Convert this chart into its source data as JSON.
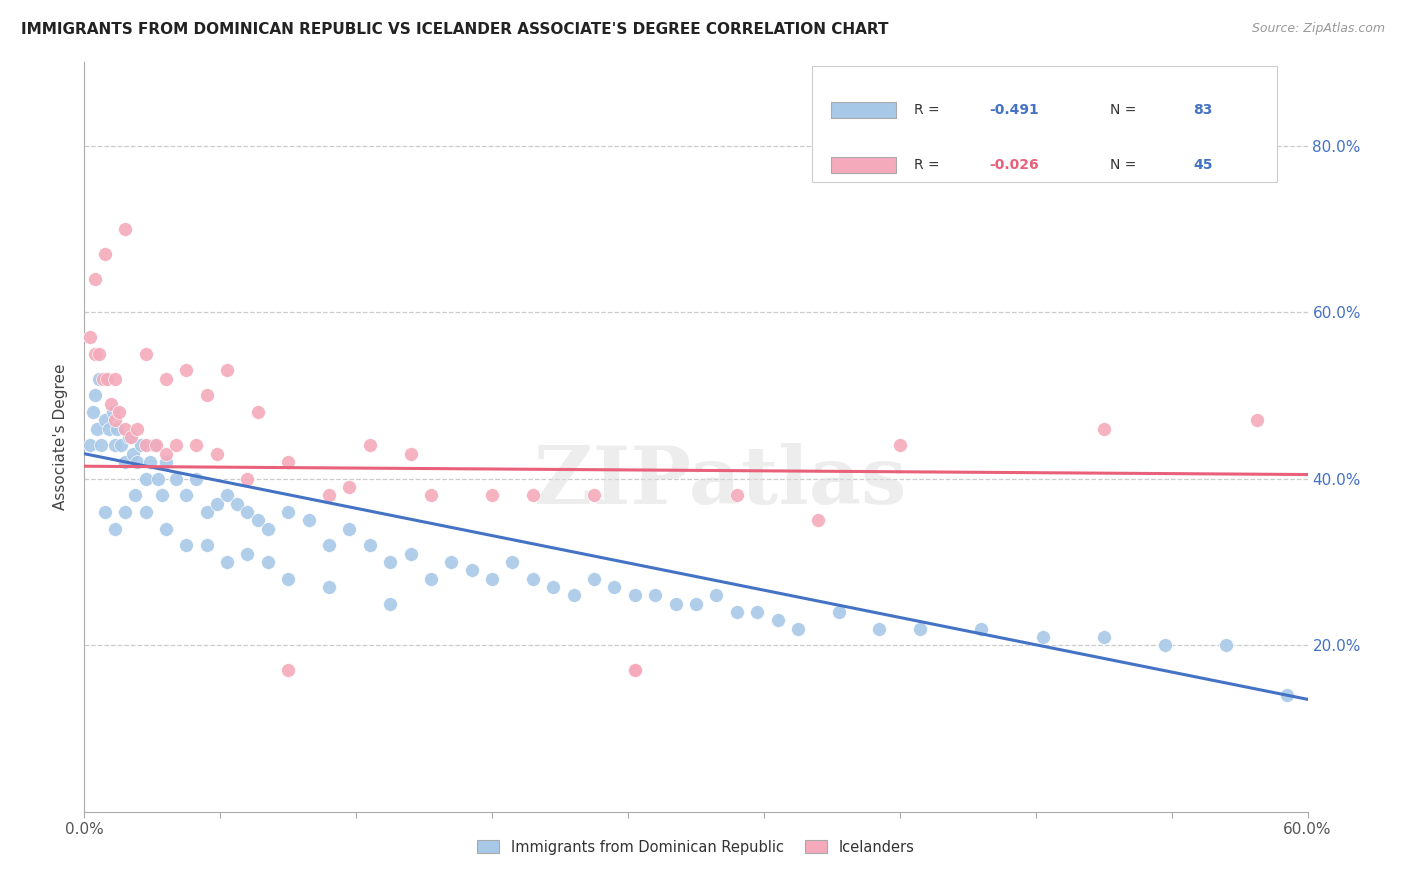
{
  "title": "IMMIGRANTS FROM DOMINICAN REPUBLIC VS ICELANDER ASSOCIATE'S DEGREE CORRELATION CHART",
  "source": "Source: ZipAtlas.com",
  "ylabel": "Associate's Degree",
  "legend_label1": "Immigrants from Dominican Republic",
  "legend_label2": "Icelanders",
  "blue_color": "#A8C8E8",
  "pink_color": "#F4AABB",
  "blue_line_color": "#4472C4",
  "pink_line_color": "#E8607A",
  "blue_r_color": "#4472C4",
  "pink_r_color": "#E8607A",
  "n_color": "#4472C4",
  "ytick_color": "#4472C4",
  "watermark": "ZIPatlas",
  "blue_dots_x": [
    0.3,
    0.4,
    0.5,
    0.6,
    0.7,
    0.8,
    1.0,
    1.2,
    1.4,
    1.5,
    1.6,
    1.8,
    2.0,
    2.2,
    2.4,
    2.6,
    2.8,
    3.0,
    3.2,
    3.4,
    3.6,
    3.8,
    4.0,
    4.5,
    5.0,
    5.5,
    6.0,
    6.5,
    7.0,
    7.5,
    8.0,
    8.5,
    9.0,
    10.0,
    11.0,
    12.0,
    13.0,
    14.0,
    15.0,
    16.0,
    17.0,
    18.0,
    19.0,
    20.0,
    21.0,
    22.0,
    23.0,
    24.0,
    25.0,
    26.0,
    27.0,
    28.0,
    29.0,
    30.0,
    31.0,
    32.0,
    33.0,
    34.0,
    35.0,
    37.0,
    39.0,
    41.0,
    44.0,
    47.0,
    50.0,
    53.0,
    56.0,
    59.0,
    1.0,
    1.5,
    2.0,
    2.5,
    3.0,
    4.0,
    5.0,
    6.0,
    7.0,
    8.0,
    9.0,
    10.0,
    12.0,
    15.0
  ],
  "blue_dots_y": [
    44.0,
    48.0,
    50.0,
    46.0,
    52.0,
    44.0,
    47.0,
    46.0,
    48.0,
    44.0,
    46.0,
    44.0,
    42.0,
    45.0,
    43.0,
    42.0,
    44.0,
    40.0,
    42.0,
    44.0,
    40.0,
    38.0,
    42.0,
    40.0,
    38.0,
    40.0,
    36.0,
    37.0,
    38.0,
    37.0,
    36.0,
    35.0,
    34.0,
    36.0,
    35.0,
    32.0,
    34.0,
    32.0,
    30.0,
    31.0,
    28.0,
    30.0,
    29.0,
    28.0,
    30.0,
    28.0,
    27.0,
    26.0,
    28.0,
    27.0,
    26.0,
    26.0,
    25.0,
    25.0,
    26.0,
    24.0,
    24.0,
    23.0,
    22.0,
    24.0,
    22.0,
    22.0,
    22.0,
    21.0,
    21.0,
    20.0,
    20.0,
    14.0,
    36.0,
    34.0,
    36.0,
    38.0,
    36.0,
    34.0,
    32.0,
    32.0,
    30.0,
    31.0,
    30.0,
    28.0,
    27.0,
    25.0
  ],
  "pink_dots_x": [
    0.3,
    0.5,
    0.7,
    0.9,
    1.1,
    1.3,
    1.5,
    1.7,
    2.0,
    2.3,
    2.6,
    3.0,
    3.5,
    4.0,
    4.5,
    5.5,
    6.5,
    8.0,
    10.0,
    13.0,
    16.0,
    20.0,
    25.0,
    27.0,
    32.0,
    36.0,
    40.0,
    50.0,
    57.5,
    0.5,
    1.0,
    1.5,
    2.0,
    3.0,
    4.0,
    5.0,
    6.0,
    7.0,
    8.5,
    10.0,
    12.0,
    14.0,
    17.0,
    22.0,
    27.0
  ],
  "pink_dots_y": [
    57.0,
    55.0,
    55.0,
    52.0,
    52.0,
    49.0,
    47.0,
    48.0,
    46.0,
    45.0,
    46.0,
    44.0,
    44.0,
    43.0,
    44.0,
    44.0,
    43.0,
    40.0,
    42.0,
    39.0,
    43.0,
    38.0,
    38.0,
    17.0,
    38.0,
    35.0,
    44.0,
    46.0,
    47.0,
    64.0,
    67.0,
    52.0,
    70.0,
    55.0,
    52.0,
    53.0,
    50.0,
    53.0,
    48.0,
    17.0,
    38.0,
    44.0,
    38.0,
    38.0,
    17.0
  ],
  "xmin": 0.0,
  "xmax": 60.0,
  "ymin": 0.0,
  "ymax": 90.0,
  "blue_line_x0": 0.0,
  "blue_line_x1": 60.0,
  "blue_line_y0": 43.0,
  "blue_line_y1": 13.5,
  "pink_line_x0": 0.0,
  "pink_line_x1": 60.0,
  "pink_line_y0": 41.5,
  "pink_line_y1": 40.5
}
